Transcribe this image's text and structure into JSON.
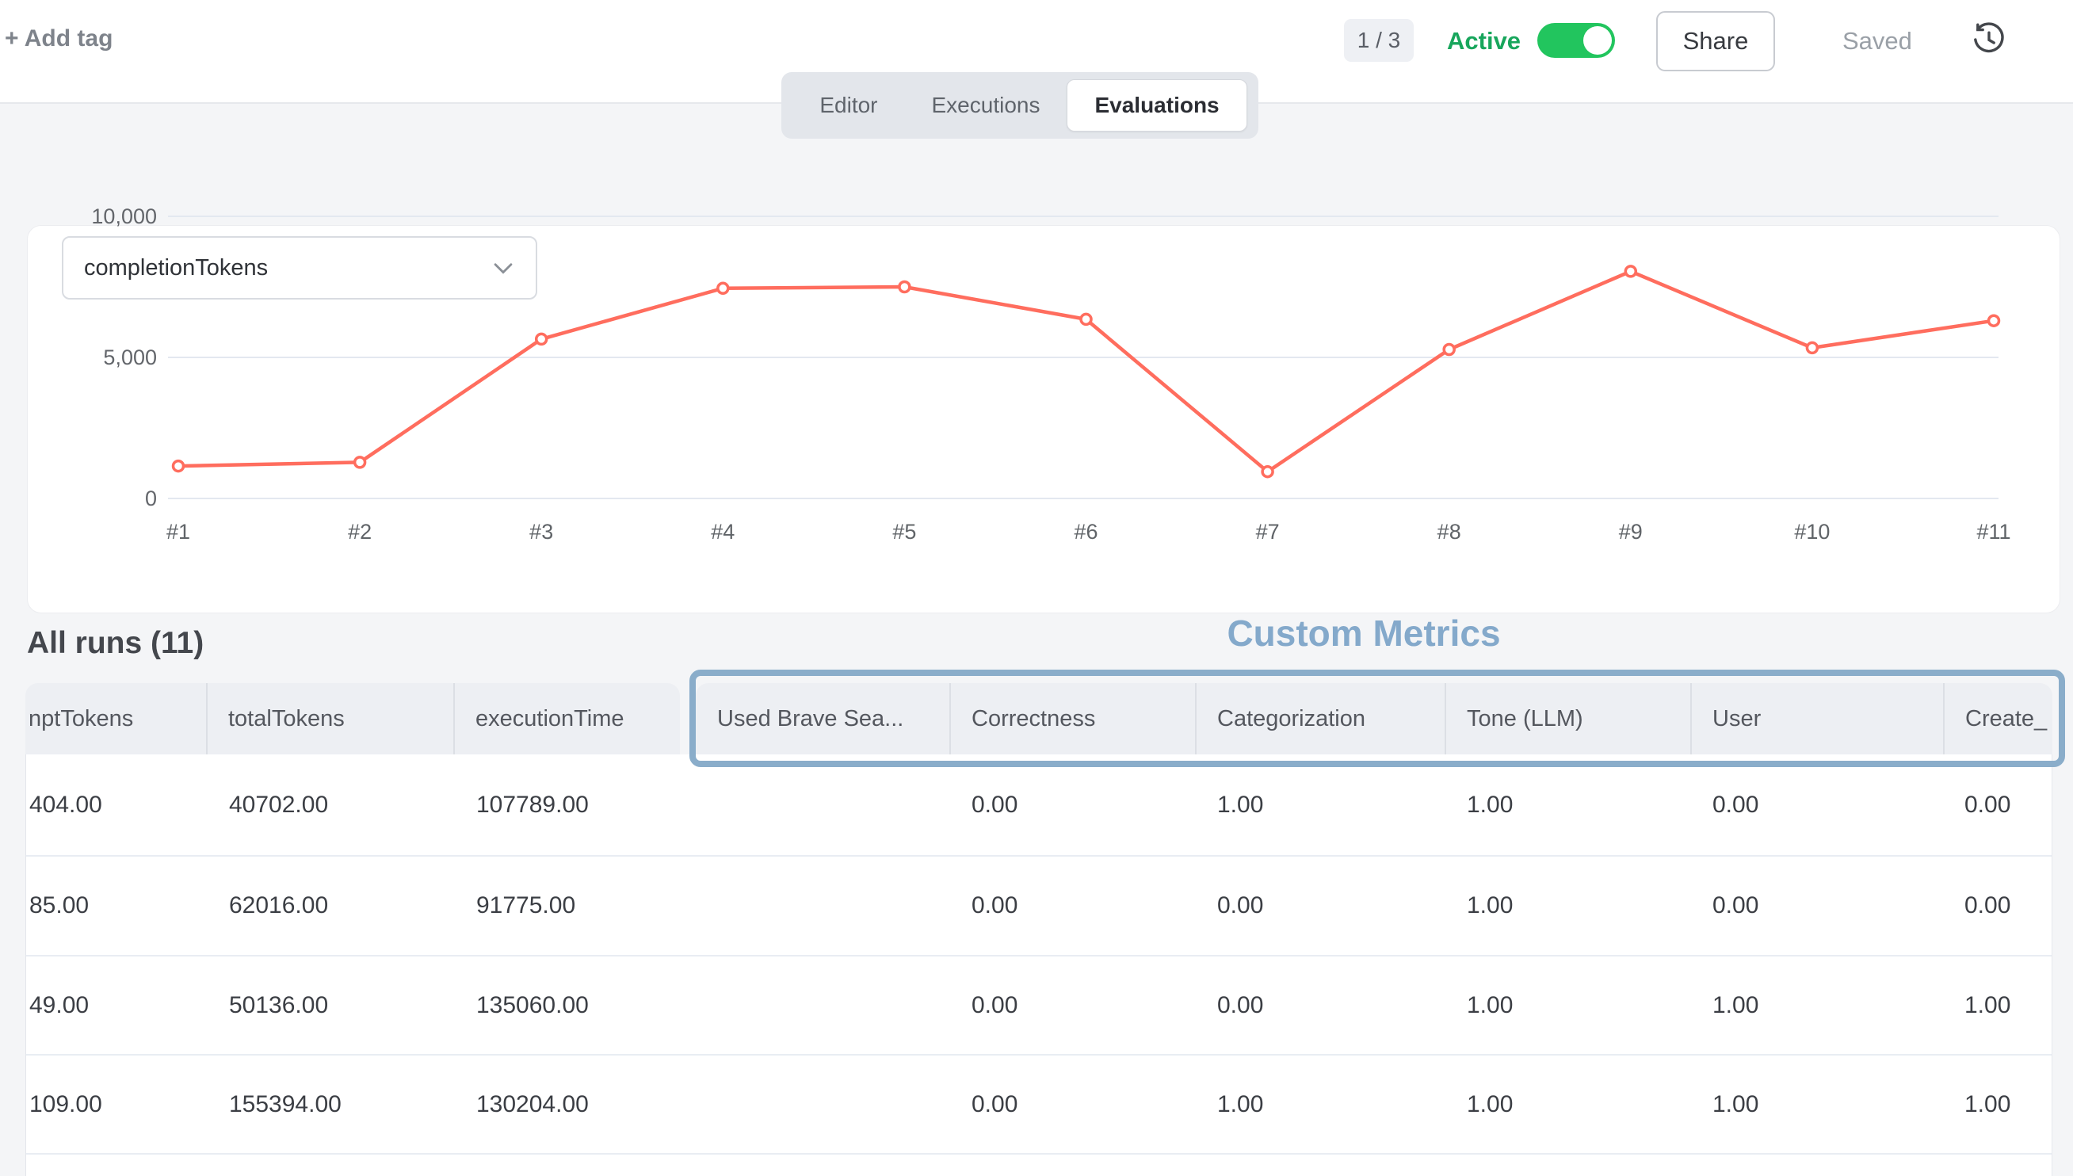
{
  "topbar": {
    "add_tag": "+ Add tag",
    "pager": "1 / 3",
    "active_label": "Active",
    "active_on": true,
    "share_label": "Share",
    "saved_label": "Saved"
  },
  "tabs": {
    "items": [
      {
        "label": "Editor",
        "active": false
      },
      {
        "label": "Executions",
        "active": false
      },
      {
        "label": "Evaluations",
        "active": true
      }
    ]
  },
  "chart_panel": {
    "metric_dropdown": {
      "value": "completionTokens"
    }
  },
  "chart_data": {
    "type": "line",
    "title": "",
    "xlabel": "",
    "ylabel": "",
    "x": [
      "#1",
      "#2",
      "#3",
      "#4",
      "#5",
      "#6",
      "#7",
      "#8",
      "#9",
      "#10",
      "#11"
    ],
    "series": [
      {
        "name": "completionTokens",
        "values": [
          1150,
          1280,
          5650,
          7450,
          7500,
          6350,
          950,
          5280,
          8050,
          5340,
          6300
        ]
      }
    ],
    "ylim": [
      0,
      10000
    ],
    "yticks": [
      0,
      5000,
      10000
    ],
    "ytick_labels": [
      "0",
      "5,000",
      "10,000"
    ],
    "grid": true,
    "legend": "none",
    "line_color": "#ff6d5e",
    "marker": "open-circle"
  },
  "runs_section": {
    "title": "All runs (11)",
    "custom_metrics_label": "Custom Metrics",
    "columns": {
      "standard": [
        "nptTokens",
        "totalTokens",
        "executionTime"
      ],
      "custom": [
        "Used Brave Sea...",
        "Correctness",
        "Categorization",
        "Tone (LLM)",
        "User",
        "Create_"
      ]
    },
    "rows": [
      {
        "standard": [
          "404.00",
          "40702.00",
          "107789.00"
        ],
        "custom": [
          "",
          "0.00",
          "1.00",
          "1.00",
          "0.00",
          "0.00"
        ]
      },
      {
        "standard": [
          "85.00",
          "62016.00",
          "91775.00"
        ],
        "custom": [
          "",
          "0.00",
          "0.00",
          "1.00",
          "0.00",
          "0.00"
        ]
      },
      {
        "standard": [
          "49.00",
          "50136.00",
          "135060.00"
        ],
        "custom": [
          "",
          "0.00",
          "0.00",
          "1.00",
          "1.00",
          "1.00"
        ]
      },
      {
        "standard": [
          "109.00",
          "155394.00",
          "130204.00"
        ],
        "custom": [
          "",
          "0.00",
          "1.00",
          "1.00",
          "1.00",
          "1.00"
        ]
      }
    ]
  },
  "colors": {
    "accent_line": "#ff6d5e",
    "custom_metrics_blue": "#84a9cb",
    "toggle_green": "#22c55e",
    "active_text_green": "#18a65c",
    "header_bg": "#edeff3"
  }
}
